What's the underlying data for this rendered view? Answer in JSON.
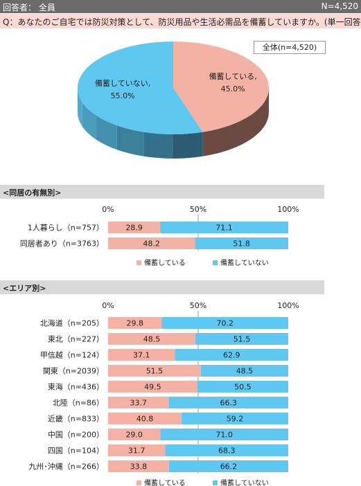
{
  "header": {
    "respondents_label": "回答者： 全員",
    "n_total": "N=4,520"
  },
  "question": "Q：あなたのご自宅では防災対策として、防災用品や生活必需品を備蓄していますか。(単一回答)",
  "pie": {
    "total_label": "全体(n=4,520)"
  },
  "sections": {
    "household": "<同居の有無別>",
    "area": "<エリア別>"
  },
  "axis_ticks": [
    "0%",
    "50%",
    "100%"
  ],
  "legend": [
    "備蓄している",
    "備蓄していない"
  ],
  "colors": {
    "stocked": "#f4b2a5",
    "not_stocked": "#5ec8f0",
    "pie_blue": "#5ec8f0",
    "pie_pink": "#f4b2a5"
  },
  "chart_data": [
    {
      "type": "pie",
      "title": "全体(n=4,520)",
      "slices": [
        {
          "label": "備蓄している",
          "value": 45.0,
          "display": "備蓄している,",
          "pct": "45.0%"
        },
        {
          "label": "備蓄していない",
          "value": 55.0,
          "display": "備蓄していない,",
          "pct": "55.0%"
        }
      ]
    },
    {
      "type": "bar",
      "stacked": true,
      "orientation": "horizontal",
      "categories": [
        "1人暮らし（n=757）",
        "同居者あり（n=3763）"
      ],
      "series": [
        {
          "name": "備蓄している",
          "values": [
            28.9,
            48.2
          ]
        },
        {
          "name": "備蓄していない",
          "values": [
            71.1,
            51.8
          ]
        }
      ],
      "xlim": [
        0,
        100
      ]
    },
    {
      "type": "bar",
      "stacked": true,
      "orientation": "horizontal",
      "categories": [
        "北海道（n=205）",
        "東北（n=227）",
        "甲信越（n=124）",
        "関東（n=2039）",
        "東海（n=436）",
        "北陸（n=86）",
        "近畿（n=833）",
        "中国（n=200）",
        "四国（n=104）",
        "九州･沖縄（n=266）"
      ],
      "series": [
        {
          "name": "備蓄している",
          "values": [
            29.8,
            48.5,
            37.1,
            51.5,
            49.5,
            33.7,
            40.8,
            29.0,
            31.7,
            33.8
          ]
        },
        {
          "name": "備蓄していない",
          "values": [
            70.2,
            51.5,
            62.9,
            48.5,
            50.5,
            66.3,
            59.2,
            71.0,
            68.3,
            66.2
          ]
        }
      ],
      "xlim": [
        0,
        100
      ]
    }
  ]
}
